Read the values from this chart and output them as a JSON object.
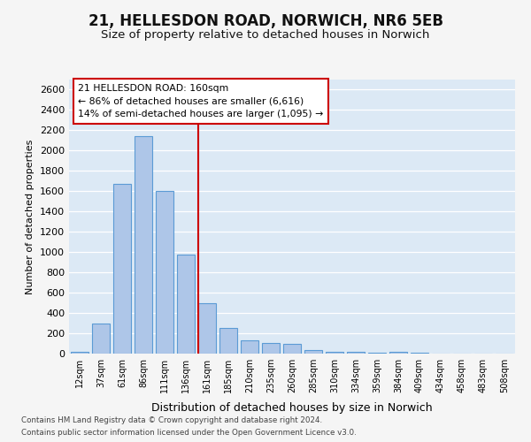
{
  "title": "21, HELLESDON ROAD, NORWICH, NR6 5EB",
  "subtitle": "Size of property relative to detached houses in Norwich",
  "xlabel": "Distribution of detached houses by size in Norwich",
  "ylabel": "Number of detached properties",
  "categories": [
    "12sqm",
    "37sqm",
    "61sqm",
    "86sqm",
    "111sqm",
    "136sqm",
    "161sqm",
    "185sqm",
    "210sqm",
    "235sqm",
    "260sqm",
    "285sqm",
    "310sqm",
    "334sqm",
    "359sqm",
    "384sqm",
    "409sqm",
    "434sqm",
    "458sqm",
    "483sqm",
    "508sqm"
  ],
  "values": [
    20,
    300,
    1670,
    2140,
    1600,
    975,
    500,
    250,
    130,
    105,
    100,
    35,
    15,
    20,
    5,
    15,
    5,
    3,
    3,
    3,
    3
  ],
  "bar_color": "#aec6e8",
  "bar_edge_color": "#5b9bd5",
  "plot_bg_color": "#dce9f5",
  "fig_bg_color": "#f5f5f5",
  "grid_color": "#ffffff",
  "annotation_text": "21 HELLESDON ROAD: 160sqm\n← 86% of detached houses are smaller (6,616)\n14% of semi-detached houses are larger (1,095) →",
  "annotation_box_facecolor": "#ffffff",
  "annotation_box_edgecolor": "#cc0000",
  "red_line_color": "#cc0000",
  "red_line_bin_index": 6,
  "ylim": [
    0,
    2700
  ],
  "yticks": [
    0,
    200,
    400,
    600,
    800,
    1000,
    1200,
    1400,
    1600,
    1800,
    2000,
    2200,
    2400,
    2600
  ],
  "footer_line1": "Contains HM Land Registry data © Crown copyright and database right 2024.",
  "footer_line2": "Contains public sector information licensed under the Open Government Licence v3.0."
}
